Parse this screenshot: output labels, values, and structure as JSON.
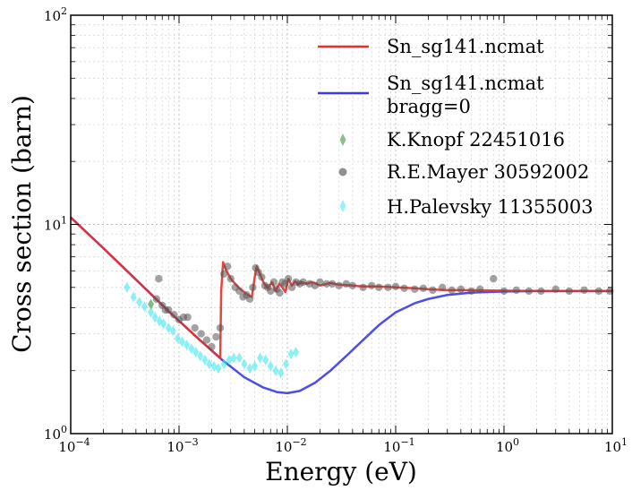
{
  "chart_data": {
    "type": "line",
    "xscale": "log",
    "yscale": "log",
    "xlabel": "Energy (eV)",
    "ylabel": "Cross section (barn)",
    "xlim": [
      0.0001,
      10
    ],
    "ylim": [
      1,
      100
    ],
    "grid": true,
    "legend_position": "top-right",
    "x_ticks": [
      {
        "value": 0.0001,
        "base": "10",
        "exp": "−4"
      },
      {
        "value": 0.001,
        "base": "10",
        "exp": "−3"
      },
      {
        "value": 0.01,
        "base": "10",
        "exp": "−2"
      },
      {
        "value": 0.1,
        "base": "10",
        "exp": "−1"
      },
      {
        "value": 1,
        "base": "10",
        "exp": "0"
      },
      {
        "value": 10,
        "base": "10",
        "exp": "1"
      }
    ],
    "y_ticks": [
      {
        "value": 1,
        "base": "10",
        "exp": "0"
      },
      {
        "value": 10,
        "base": "10",
        "exp": "1"
      },
      {
        "value": 100,
        "base": "10",
        "exp": "2"
      }
    ],
    "legend": {
      "red_line": "Sn_sg141.ncmat",
      "blue_line_1": "Sn_sg141.ncmat",
      "blue_line_2": "bragg=0",
      "knopf": "K.Knopf 22451016",
      "mayer": "R.E.Mayer 30592002",
      "palevsky": "H.Palevsky 11355003"
    },
    "series": [
      {
        "name": "Sn_sg141.ncmat (bragg=0)",
        "color": "#3a3ae8",
        "kind": "line",
        "x": [
          0.0001,
          0.0002,
          0.0004,
          0.0008,
          0.0015,
          0.0025,
          0.004,
          0.006,
          0.008,
          0.01,
          0.013,
          0.018,
          0.025,
          0.035,
          0.05,
          0.07,
          0.1,
          0.15,
          0.2,
          0.3,
          0.5,
          1,
          2,
          5,
          10
        ],
        "y": [
          10.8,
          7.7,
          5.45,
          3.85,
          2.85,
          2.25,
          1.86,
          1.66,
          1.58,
          1.56,
          1.6,
          1.75,
          2.0,
          2.35,
          2.8,
          3.3,
          3.8,
          4.2,
          4.4,
          4.6,
          4.72,
          4.78,
          4.8,
          4.8,
          4.8
        ]
      },
      {
        "name": "Sn_sg141.ncmat",
        "color": "#e8302a",
        "kind": "line",
        "x": [
          0.0001,
          0.0002,
          0.0004,
          0.0008,
          0.0015,
          0.0024,
          0.00245,
          0.00255,
          0.0027,
          0.003,
          0.0033,
          0.0037,
          0.0042,
          0.0047,
          0.005,
          0.0052,
          0.0055,
          0.006,
          0.0066,
          0.0072,
          0.0078,
          0.0084,
          0.009,
          0.0096,
          0.0102,
          0.011,
          0.0118,
          0.0126,
          0.0135,
          0.015,
          0.017,
          0.02,
          0.025,
          0.03,
          0.04,
          0.05,
          0.07,
          0.1,
          0.15,
          0.2,
          0.3,
          0.5,
          1,
          2,
          5,
          10
        ],
        "y": [
          10.8,
          7.7,
          5.45,
          3.85,
          2.85,
          2.3,
          4.8,
          6.6,
          6.1,
          5.5,
          5.2,
          4.9,
          4.65,
          4.5,
          5.6,
          6.3,
          5.9,
          5.3,
          4.95,
          5.3,
          4.8,
          5.2,
          5.0,
          4.75,
          5.5,
          5.1,
          5.35,
          5.15,
          5.3,
          5.2,
          5.3,
          5.1,
          5.25,
          5.15,
          5.1,
          5.05,
          5.05,
          5.0,
          4.95,
          4.9,
          4.85,
          4.85,
          4.82,
          4.8,
          4.8,
          4.8
        ]
      },
      {
        "name": "K.Knopf 22451016",
        "color": "#2e8b2e",
        "kind": "diamond",
        "x": [
          0.00055
        ],
        "y": [
          4.15
        ]
      },
      {
        "name": "R.E.Mayer 30592002",
        "color": "#555555",
        "kind": "circle",
        "x": [
          0.00062,
          0.00065,
          0.0007,
          0.00075,
          0.0008,
          0.0009,
          0.001,
          0.0011,
          0.0012,
          0.0014,
          0.0016,
          0.0018,
          0.002,
          0.0022,
          0.0024,
          0.0026,
          0.0028,
          0.003,
          0.0033,
          0.0036,
          0.0039,
          0.0042,
          0.0045,
          0.0048,
          0.0051,
          0.0054,
          0.0058,
          0.0062,
          0.0066,
          0.007,
          0.0075,
          0.008,
          0.0085,
          0.009,
          0.0095,
          0.0102,
          0.011,
          0.012,
          0.013,
          0.014,
          0.016,
          0.018,
          0.02,
          0.023,
          0.026,
          0.03,
          0.035,
          0.04,
          0.05,
          0.06,
          0.07,
          0.085,
          0.1,
          0.12,
          0.15,
          0.18,
          0.22,
          0.27,
          0.33,
          0.4,
          0.5,
          0.6,
          0.8,
          1.0,
          1.3,
          1.7,
          2.2,
          3.0,
          4.0,
          5.5,
          7.5,
          9.5
        ],
        "y": [
          4.4,
          5.5,
          4.1,
          3.9,
          3.9,
          3.7,
          3.5,
          3.6,
          3.6,
          3.2,
          3.0,
          2.8,
          2.6,
          2.9,
          3.2,
          5.8,
          6.3,
          5.5,
          5.0,
          4.8,
          4.5,
          4.6,
          4.4,
          5.0,
          6.2,
          5.9,
          5.6,
          5.1,
          5.0,
          4.8,
          5.3,
          4.9,
          4.7,
          5.3,
          5.2,
          5.5,
          5.0,
          5.3,
          5.2,
          5.3,
          5.2,
          5.1,
          5.3,
          5.2,
          5.2,
          5.1,
          5.2,
          5.1,
          5.0,
          5.1,
          5.0,
          5.0,
          5.05,
          4.95,
          4.9,
          4.95,
          4.85,
          5.0,
          4.85,
          4.9,
          4.8,
          4.9,
          5.5,
          4.8,
          4.85,
          4.8,
          4.8,
          4.9,
          4.8,
          4.85,
          4.8,
          4.8
        ]
      },
      {
        "name": "H.Palevsky 11355003",
        "color": "#40e8f0",
        "kind": "diamond",
        "x": [
          0.00033,
          0.00038,
          0.00043,
          0.00048,
          0.00055,
          0.0006,
          0.00066,
          0.00072,
          0.0008,
          0.00088,
          0.00097,
          0.00107,
          0.00118,
          0.0013,
          0.00143,
          0.00157,
          0.00173,
          0.0019,
          0.0021,
          0.0023,
          0.0026,
          0.0029,
          0.0032,
          0.0036,
          0.004,
          0.0045,
          0.005,
          0.0056,
          0.0063,
          0.007,
          0.0078,
          0.0087,
          0.0097,
          0.0108,
          0.012
        ],
        "y": [
          5.0,
          4.5,
          4.25,
          4.05,
          3.8,
          3.6,
          3.45,
          3.35,
          3.2,
          3.1,
          2.85,
          2.75,
          2.65,
          2.55,
          2.45,
          2.35,
          2.25,
          2.15,
          2.1,
          2.05,
          2.15,
          2.25,
          2.3,
          2.3,
          2.15,
          2.05,
          2.1,
          2.3,
          2.25,
          2.1,
          2.0,
          1.95,
          2.15,
          2.4,
          2.45
        ]
      }
    ]
  }
}
